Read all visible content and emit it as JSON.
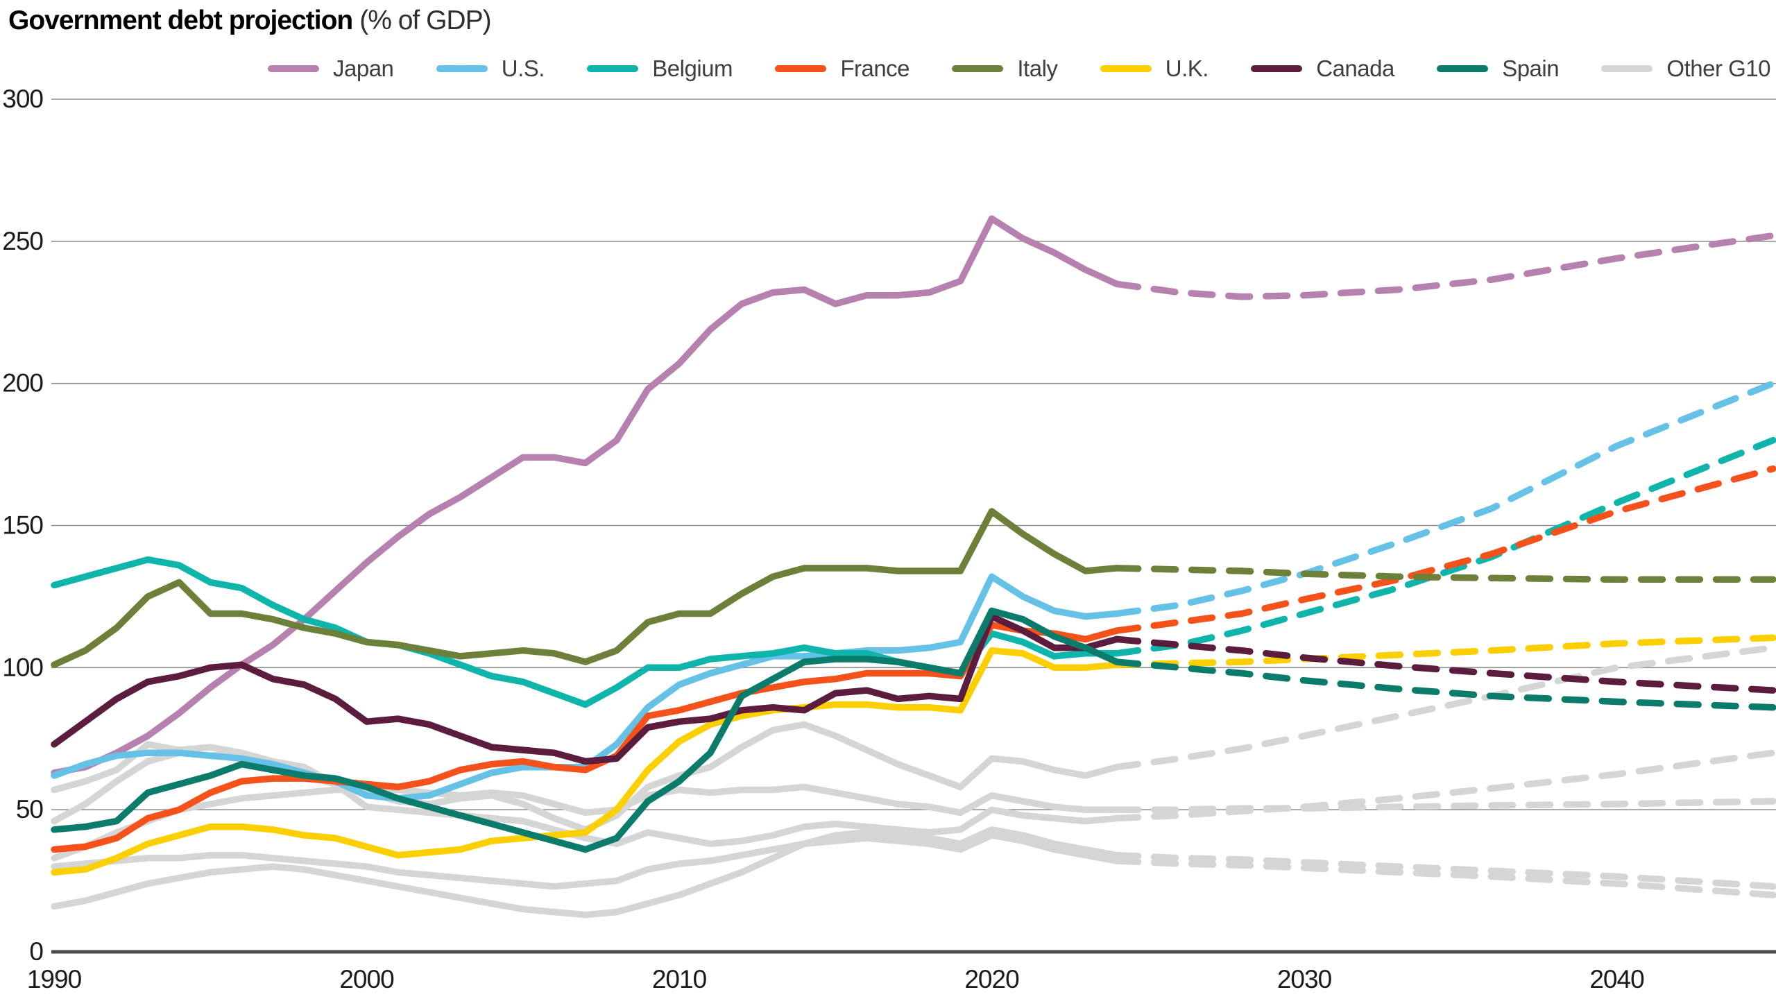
{
  "title": {
    "main": "Government debt projection",
    "suffix": "(% of GDP)"
  },
  "chart_data": {
    "type": "line",
    "title": "Government debt projection",
    "subtitle": "(% of GDP)",
    "x_range": [
      1990,
      2045
    ],
    "ylim": [
      0,
      300
    ],
    "yticks": [
      0,
      50,
      100,
      150,
      200,
      250,
      300
    ],
    "xticks": [
      1990,
      2000,
      2010,
      2020,
      2030,
      2040
    ],
    "grid": "horizontal-only",
    "legend_position": "top",
    "projection_start_year": 2024,
    "line_style_note": "solid = history, dashed = projection",
    "colors": {
      "axis_text": "#1a1a1a",
      "gridline": "#8f8f8f",
      "zero_axis": "#4b4b4b",
      "other_g10": "#d5d5d5"
    },
    "legend": [
      {
        "label": "Japan",
        "color": "#b781af"
      },
      {
        "label": "U.S.",
        "color": "#66c1e6"
      },
      {
        "label": "Belgium",
        "color": "#0fb5ab"
      },
      {
        "label": "France",
        "color": "#f4521a"
      },
      {
        "label": "Italy",
        "color": "#6c8039"
      },
      {
        "label": "U.K.",
        "color": "#fccf00"
      },
      {
        "label": "Canada",
        "color": "#5c1c3d"
      },
      {
        "label": "Spain",
        "color": "#0b7c6c"
      },
      {
        "label": "Other G10",
        "color": "#d5d5d5"
      }
    ],
    "series": [
      {
        "name": "Japan",
        "color": "#b781af",
        "solid": {
          "start_year": 1990,
          "values": [
            63,
            65,
            70,
            76,
            84,
            93,
            101,
            108,
            117,
            127,
            137,
            146,
            154,
            160,
            167,
            174,
            174,
            172,
            180,
            198,
            207,
            219,
            228,
            232,
            233,
            228,
            231,
            231,
            232,
            236,
            258,
            251,
            246,
            240,
            235
          ]
        },
        "dashed": {
          "years": [
            2024,
            2026,
            2028,
            2030,
            2033,
            2036,
            2040,
            2045
          ],
          "values": [
            235,
            232,
            230.5,
            231,
            233,
            236.5,
            244,
            252
          ]
        }
      },
      {
        "name": "U.S.",
        "color": "#66c1e6",
        "solid": {
          "start_year": 1990,
          "values": [
            62,
            66,
            69,
            70,
            70,
            69,
            68,
            66,
            63,
            60,
            55,
            54,
            55,
            59,
            63,
            65,
            65,
            65,
            73,
            86,
            94,
            98,
            101,
            104,
            104,
            105,
            106,
            106,
            107,
            109,
            132,
            125,
            120,
            118,
            119
          ]
        },
        "dashed": {
          "years": [
            2024,
            2026,
            2028,
            2030,
            2033,
            2036,
            2040,
            2045
          ],
          "values": [
            119,
            122,
            127,
            133,
            144,
            156,
            178,
            200
          ]
        }
      },
      {
        "name": "Belgium",
        "color": "#0fb5ab",
        "solid": {
          "start_year": 1990,
          "values": [
            129,
            132,
            135,
            138,
            136,
            130,
            128,
            122,
            117,
            114,
            109,
            108,
            105,
            101,
            97,
            95,
            91,
            87,
            93,
            100,
            100,
            103,
            104,
            105,
            107,
            105,
            105,
            102,
            100,
            98,
            112,
            109,
            104,
            105,
            105
          ]
        },
        "dashed": {
          "years": [
            2024,
            2026,
            2028,
            2030,
            2033,
            2036,
            2040,
            2045
          ],
          "values": [
            105,
            108,
            113,
            119,
            128,
            139,
            158,
            180
          ]
        }
      },
      {
        "name": "France",
        "color": "#f4521a",
        "solid": {
          "start_year": 1990,
          "values": [
            36,
            37,
            40,
            47,
            50,
            56,
            60,
            61,
            61,
            60,
            59,
            58,
            60,
            64,
            66,
            67,
            65,
            64,
            69,
            83,
            85,
            88,
            91,
            93,
            95,
            96,
            98,
            98,
            98,
            97,
            115,
            113,
            112,
            110,
            113
          ]
        },
        "dashed": {
          "years": [
            2024,
            2026,
            2028,
            2030,
            2033,
            2036,
            2040,
            2045
          ],
          "values": [
            113,
            116,
            119,
            124,
            131,
            140,
            155,
            170
          ]
        }
      },
      {
        "name": "Italy",
        "color": "#6c8039",
        "solid": {
          "start_year": 1990,
          "values": [
            101,
            106,
            114,
            125,
            130,
            119,
            119,
            117,
            114,
            112,
            109,
            108,
            106,
            104,
            105,
            106,
            105,
            102,
            106,
            116,
            119,
            119,
            126,
            132,
            135,
            135,
            135,
            134,
            134,
            134,
            155,
            147,
            140,
            134,
            135
          ]
        },
        "dashed": {
          "years": [
            2024,
            2026,
            2028,
            2030,
            2033,
            2036,
            2040,
            2045
          ],
          "values": [
            135,
            134.5,
            134,
            133,
            132,
            131.5,
            131,
            131
          ]
        }
      },
      {
        "name": "U.K.",
        "color": "#fccf00",
        "solid": {
          "start_year": 1990,
          "values": [
            28,
            29,
            33,
            38,
            41,
            44,
            44,
            43,
            41,
            40,
            37,
            34,
            35,
            36,
            39,
            40,
            41,
            42,
            50,
            64,
            74,
            80,
            83,
            85,
            86,
            87,
            87,
            86,
            86,
            85,
            106,
            105,
            100,
            100,
            101
          ]
        },
        "dashed": {
          "years": [
            2024,
            2026,
            2028,
            2030,
            2033,
            2036,
            2040,
            2045
          ],
          "values": [
            101,
            101.5,
            102,
            103,
            104.5,
            106,
            108.5,
            110.5
          ]
        }
      },
      {
        "name": "Canada",
        "color": "#5c1c3d",
        "solid": {
          "start_year": 1990,
          "values": [
            73,
            81,
            89,
            95,
            97,
            100,
            101,
            96,
            94,
            89,
            81,
            82,
            80,
            76,
            72,
            71,
            70,
            67,
            68,
            79,
            81,
            82,
            85,
            86,
            85,
            91,
            92,
            89,
            90,
            89,
            118,
            113,
            107,
            107,
            110
          ]
        },
        "dashed": {
          "years": [
            2024,
            2026,
            2028,
            2030,
            2033,
            2036,
            2040,
            2045
          ],
          "values": [
            110,
            108,
            106,
            103.5,
            100.5,
            98,
            95,
            92
          ]
        }
      },
      {
        "name": "Spain",
        "color": "#0b7c6c",
        "solid": {
          "start_year": 1990,
          "values": [
            43,
            44,
            46,
            56,
            59,
            62,
            66,
            64,
            62,
            61,
            58,
            54,
            51,
            48,
            45,
            42,
            39,
            36,
            40,
            53,
            60,
            70,
            90,
            96,
            102,
            103,
            103,
            102,
            100,
            98,
            120,
            117,
            111,
            107,
            102
          ]
        },
        "dashed": {
          "years": [
            2024,
            2026,
            2028,
            2030,
            2033,
            2036,
            2040,
            2045
          ],
          "values": [
            102,
            100,
            98,
            95.5,
            92.5,
            90,
            88,
            86
          ]
        }
      }
    ],
    "other_g10_series": [
      {
        "name": "other-g10-a",
        "color": "#d5d5d5",
        "solid": {
          "start_year": 1990,
          "values": [
            57,
            60,
            64,
            73,
            71,
            72,
            70,
            66,
            62,
            59,
            56,
            53,
            52,
            54,
            55,
            52,
            47,
            43,
            48,
            58,
            62,
            65,
            72,
            78,
            80,
            76,
            71,
            66,
            62,
            58,
            68,
            67,
            64,
            62,
            65
          ]
        },
        "dashed": {
          "years": [
            2024,
            2026,
            2028,
            2030,
            2033,
            2036,
            2040,
            2045
          ],
          "values": [
            65,
            68,
            71.5,
            76,
            83,
            90,
            100,
            107
          ]
        }
      },
      {
        "name": "other-g10-b",
        "color": "#d5d5d5",
        "solid": {
          "start_year": 1990,
          "values": [
            46,
            52,
            60,
            67,
            70,
            69,
            70,
            67,
            65,
            59,
            51,
            50,
            49,
            48,
            47,
            46,
            43,
            40,
            38,
            42,
            40,
            38,
            39,
            41,
            44,
            45,
            44,
            43,
            42,
            43,
            50,
            48,
            47,
            46,
            47
          ]
        },
        "dashed": {
          "years": [
            2024,
            2026,
            2028,
            2030,
            2033,
            2036,
            2040,
            2045
          ],
          "values": [
            47,
            48,
            49.5,
            51,
            54,
            57.5,
            62.5,
            70
          ]
        }
      },
      {
        "name": "other-g10-c",
        "color": "#d5d5d5",
        "solid": {
          "start_year": 1990,
          "values": [
            33,
            37,
            42,
            46,
            50,
            52,
            54,
            55,
            56,
            57,
            57,
            57,
            56,
            55,
            56,
            55,
            52,
            49,
            50,
            55,
            57,
            56,
            57,
            57,
            58,
            56,
            54,
            52,
            51,
            49,
            55,
            53,
            51,
            50,
            50
          ]
        },
        "dashed": {
          "years": [
            2024,
            2026,
            2028,
            2030,
            2033,
            2036,
            2040,
            2045
          ],
          "values": [
            50,
            50,
            50.5,
            50.5,
            51,
            51.5,
            52,
            53
          ]
        }
      },
      {
        "name": "other-g10-d",
        "color": "#d5d5d5",
        "solid": {
          "start_year": 1990,
          "values": [
            16,
            18,
            21,
            24,
            26,
            28,
            29,
            30,
            29,
            27,
            25,
            23,
            21,
            19,
            17,
            15,
            14,
            13,
            14,
            17,
            20,
            24,
            28,
            33,
            38,
            41,
            42,
            41,
            40,
            38,
            43,
            41,
            38,
            36,
            34
          ]
        },
        "dashed": {
          "years": [
            2024,
            2026,
            2028,
            2030,
            2033,
            2036,
            2040,
            2045
          ],
          "values": [
            34,
            33,
            32.5,
            31.5,
            30,
            28.5,
            26.5,
            23
          ]
        }
      },
      {
        "name": "other-g10-e",
        "color": "#d5d5d5",
        "solid": {
          "start_year": 1990,
          "values": [
            30,
            31,
            32,
            33,
            33,
            34,
            34,
            33,
            32,
            31,
            30,
            28,
            27,
            26,
            25,
            24,
            23,
            24,
            25,
            29,
            31,
            32,
            34,
            36,
            38,
            39,
            40,
            39,
            38,
            36,
            41,
            39,
            36,
            34,
            32
          ]
        },
        "dashed": {
          "years": [
            2024,
            2026,
            2028,
            2030,
            2033,
            2036,
            2040,
            2045
          ],
          "values": [
            32,
            31,
            30.5,
            29.5,
            28,
            26.5,
            24,
            20
          ]
        }
      }
    ]
  }
}
